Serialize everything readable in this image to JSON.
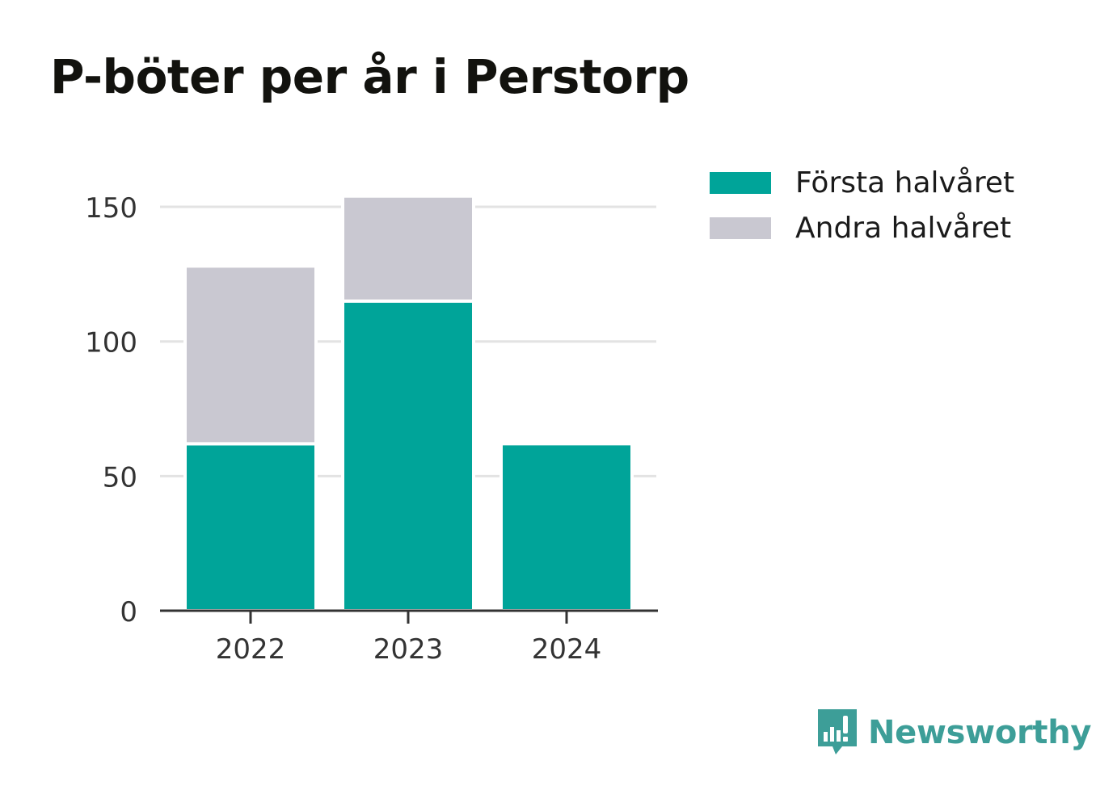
{
  "title": "P-böter per år i Perstorp",
  "colors": {
    "first_half": "#00a499",
    "second_half": "#c9c8d1",
    "grid": "#e3e3e3",
    "axis": "#333333",
    "logo": "#3d9e98"
  },
  "legend": [
    {
      "label": "Första halvåret",
      "color": "#00a499"
    },
    {
      "label": "Andra halvåret",
      "color": "#c9c8d1"
    }
  ],
  "logo": {
    "text": "Newsworthy",
    "icon": "bar-chart-speech-bubble-icon"
  },
  "chart_data": {
    "type": "bar",
    "stacked": true,
    "title": "P-böter per år i Perstorp",
    "categories": [
      "2022",
      "2023",
      "2024"
    ],
    "series": [
      {
        "name": "Första halvåret",
        "values": [
          62,
          115,
          62
        ]
      },
      {
        "name": "Andra halvåret",
        "values": [
          66,
          39,
          0
        ]
      }
    ],
    "yticks": [
      0,
      50,
      100,
      150
    ],
    "ylim": [
      0,
      165
    ],
    "grid": true,
    "legend_position": "top-right"
  }
}
